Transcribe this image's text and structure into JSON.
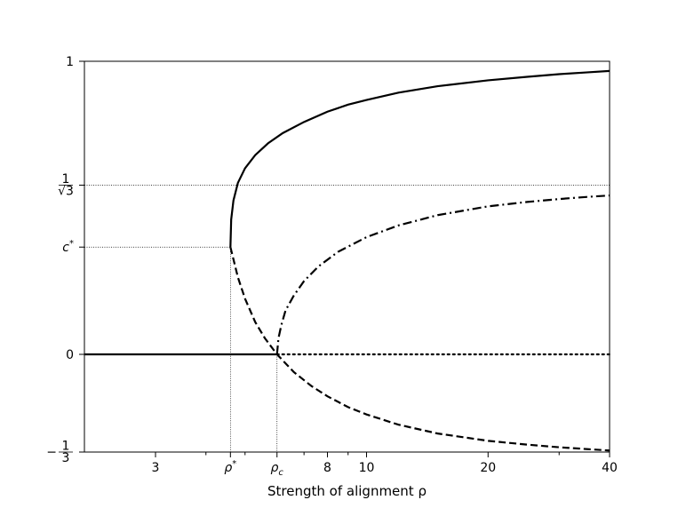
{
  "chart_data": {
    "type": "line",
    "title": "",
    "xlabel": "Strength of alignment ρ",
    "ylabel": "",
    "x_scale": "log",
    "xlim": [
      2,
      40
    ],
    "ylim": [
      -0.3333,
      1
    ],
    "x_ticks": [
      {
        "value": 3,
        "label": "3"
      },
      {
        "value": 4.6,
        "label": "ρ*"
      },
      {
        "value": 6,
        "label": "ρc"
      },
      {
        "value": 8,
        "label": "8"
      },
      {
        "value": 10,
        "label": "10"
      },
      {
        "value": 20,
        "label": "20"
      },
      {
        "value": 40,
        "label": "40"
      }
    ],
    "x_minor_ticks": [
      4,
      5,
      7,
      9,
      30
    ],
    "y_ticks": [
      {
        "value": 1,
        "label": "1"
      },
      {
        "value": 0.57735,
        "label": "1/√3"
      },
      {
        "value": 0.366,
        "label": "c*"
      },
      {
        "value": 0,
        "label": "0"
      },
      {
        "value": -0.3333,
        "label": "−1/3"
      }
    ],
    "reference_lines": {
      "horizontal": [
        0.57735,
        0.366
      ],
      "vertical": [
        4.6,
        6
      ]
    },
    "series": [
      {
        "style": "solid",
        "x": [
          4.6,
          4.62,
          4.68,
          4.8,
          5,
          5.3,
          5.7,
          6.2,
          7,
          8,
          9,
          10,
          12,
          15,
          20,
          25,
          30,
          35,
          40
        ],
        "y": [
          0.366,
          0.46,
          0.525,
          0.585,
          0.635,
          0.68,
          0.72,
          0.755,
          0.793,
          0.828,
          0.852,
          0.868,
          0.893,
          0.915,
          0.935,
          0.947,
          0.956,
          0.962,
          0.967
        ]
      },
      {
        "style": "solid",
        "x": [
          2,
          6
        ],
        "y": [
          0,
          0
        ]
      },
      {
        "style": "dotted",
        "x": [
          6,
          40
        ],
        "y": [
          0,
          0
        ]
      },
      {
        "style": "dashed",
        "x": [
          4.6,
          4.8,
          5,
          5.3,
          5.6,
          6,
          6.6,
          7.3,
          8,
          9,
          10,
          12,
          15,
          20,
          25,
          30,
          35,
          40
        ],
        "y": [
          0.366,
          0.263,
          0.19,
          0.11,
          0.055,
          0,
          -0.06,
          -0.108,
          -0.143,
          -0.18,
          -0.205,
          -0.24,
          -0.27,
          -0.295,
          -0.308,
          -0.317,
          -0.323,
          -0.328
        ]
      },
      {
        "style": "dashdot",
        "x": [
          6,
          6.05,
          6.15,
          6.3,
          6.6,
          7,
          7.6,
          8.5,
          10,
          12,
          15,
          20,
          25,
          30,
          35,
          40
        ],
        "y": [
          0,
          0.055,
          0.1,
          0.15,
          0.2,
          0.25,
          0.3,
          0.35,
          0.4,
          0.44,
          0.475,
          0.505,
          0.52,
          0.53,
          0.537,
          0.542
        ]
      }
    ]
  }
}
